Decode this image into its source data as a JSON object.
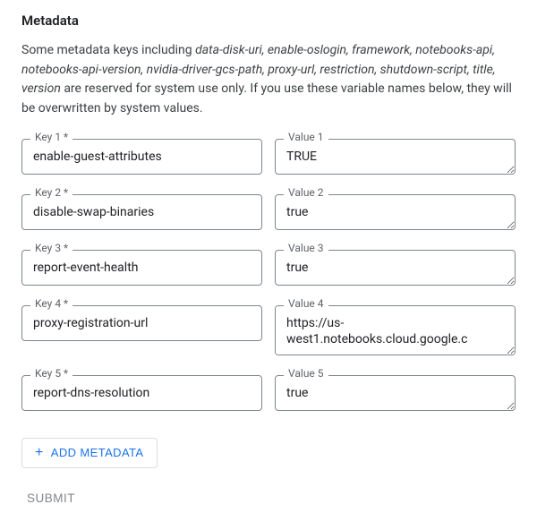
{
  "section": {
    "title": "Metadata",
    "description_prefix": "Some metadata keys including ",
    "reserved_keys": "data-disk-uri, enable-oslogin, framework, notebooks-api, notebooks-api-version, nvidia-driver-gcs-path, proxy-url, restriction, shutdown-script, title, version",
    "description_suffix": " are reserved for system use only. If you use these variable names below, they will be overwritten by system values."
  },
  "rows": [
    {
      "key_label": "Key 1 *",
      "key_value": "enable-guest-attributes",
      "value_label": "Value 1",
      "value_value": "TRUE",
      "tall": false,
      "scroll": false
    },
    {
      "key_label": "Key 2 *",
      "key_value": "disable-swap-binaries",
      "value_label": "Value 2",
      "value_value": "true",
      "tall": false,
      "scroll": false
    },
    {
      "key_label": "Key 3 *",
      "key_value": "report-event-health",
      "value_label": "Value 3",
      "value_value": "true",
      "tall": false,
      "scroll": false
    },
    {
      "key_label": "Key 4 *",
      "key_value": "proxy-registration-url",
      "value_label": "Value 4",
      "value_value": "https://us-west1.notebooks.cloud.google.c",
      "tall": true,
      "scroll": true
    },
    {
      "key_label": "Key 5 *",
      "key_value": "report-dns-resolution",
      "value_label": "Value 5",
      "value_value": "true",
      "tall": false,
      "scroll": false
    }
  ],
  "buttons": {
    "add": "ADD METADATA",
    "submit": "SUBMIT"
  },
  "colors": {
    "primary": "#1a73e8",
    "border": "#80868b",
    "text": "#202124",
    "muted": "#5f6368"
  }
}
